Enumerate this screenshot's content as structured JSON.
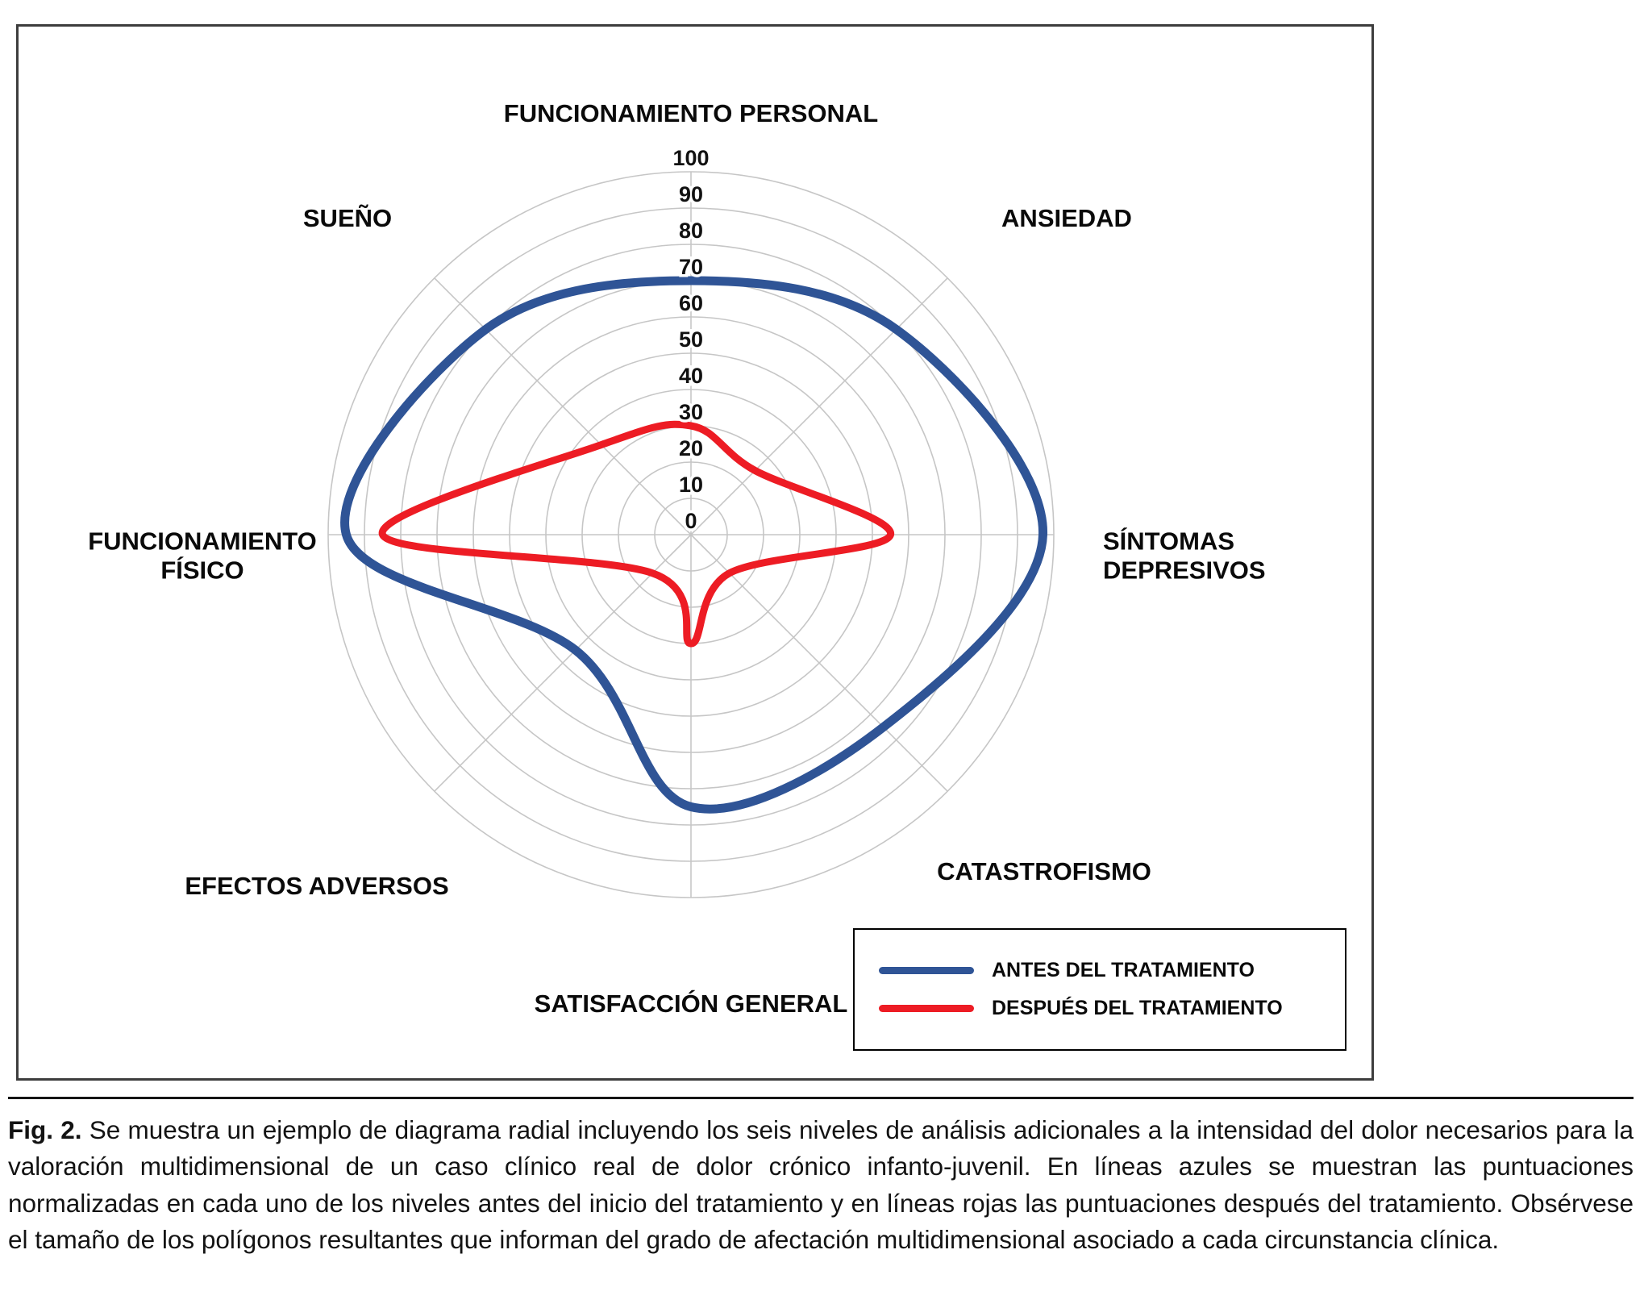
{
  "chart_data": {
    "type": "radar",
    "title": "",
    "categories": [
      "FUNCIONAMIENTO PERSONAL",
      "ANSIEDAD",
      "SÍNTOMAS DEPRESIVOS",
      "CATASTROFISMO",
      "SATISFACCIÓN GENERAL",
      "EFECTOS ADVERSOS",
      "FUNCIONAMIENTO FÍSICO",
      "SUEÑO"
    ],
    "ticks": [
      0,
      10,
      20,
      30,
      40,
      50,
      60,
      70,
      80,
      90,
      100
    ],
    "rmax": 100,
    "grid": true,
    "grid_color": "#c6c6c6",
    "legend_position": "bottom-right",
    "series": [
      {
        "name": "ANTES DEL TRATAMIENTO",
        "color": "#2f5496",
        "stroke_width": 11,
        "values": [
          70,
          80,
          97,
          75,
          75,
          45,
          95,
          80
        ]
      },
      {
        "name": "DESPUÉS DEL TRATAMIENTO",
        "color": "#ed1c24",
        "stroke_width": 9,
        "values": [
          30,
          25,
          55,
          15,
          30,
          15,
          85,
          35
        ]
      }
    ]
  },
  "caption": {
    "label": "Fig. 2.",
    "text": " Se muestra un ejemplo de diagrama radial incluyendo los seis niveles de análisis adicionales a la intensidad del dolor necesarios para la valoración multidimensional de un caso clínico real de dolor crónico infanto-juvenil. En líneas azules se muestran las puntuaciones normalizadas en cada uno de los niveles antes del inicio del tratamiento y en líneas rojas las puntuaciones después del tratamiento. Obsérvese el tamaño de los polígonos resultantes que informan del grado de afectación multidimensional asociado a cada circunstancia clínica."
  }
}
